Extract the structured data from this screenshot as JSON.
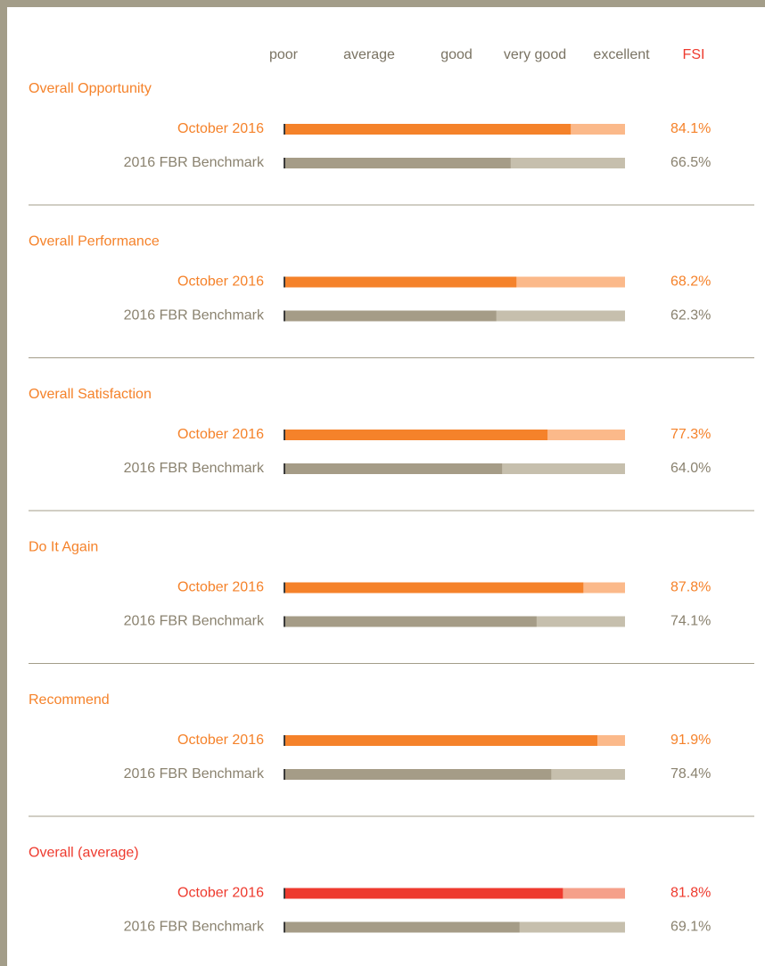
{
  "chart_data": {
    "type": "bar",
    "orientation": "horizontal",
    "scale_labels": [
      "poor",
      "average",
      "good",
      "very good",
      "excellent"
    ],
    "value_header": "FSI",
    "value_header_color": "#ee3a2e",
    "categories": [
      "Overall Opportunity",
      "Overall Performance",
      "Overall Satisfaction",
      "Do It Again",
      "Recommend",
      "Overall (average)"
    ],
    "xlim": [
      0,
      100
    ],
    "series": [
      {
        "name": "October 2016",
        "colors": [
          "#f5822a",
          "#f5822a",
          "#f5822a",
          "#f5822a",
          "#f5822a",
          "#ee3a2e"
        ],
        "track_colors": [
          "#fbb98a",
          "#fbb98a",
          "#fbb98a",
          "#fbb98a",
          "#fbb98a",
          "#f5a08a"
        ],
        "values": [
          84.1,
          68.2,
          77.3,
          87.8,
          91.9,
          81.8
        ],
        "value_labels": [
          "84.1%",
          "68.2%",
          "77.3%",
          "87.8%",
          "91.9%",
          "81.8%"
        ]
      },
      {
        "name": "2016 FBR Benchmark",
        "colors": [
          "#a59c87",
          "#a59c87",
          "#a59c87",
          "#a59c87",
          "#a59c87",
          "#a59c87"
        ],
        "track_colors": [
          "#c6bfad",
          "#c6bfad",
          "#c6bfad",
          "#c6bfad",
          "#c6bfad",
          "#c6bfad"
        ],
        "values": [
          66.5,
          62.3,
          64.0,
          74.1,
          78.4,
          69.1
        ],
        "value_labels": [
          "66.5%",
          "62.3%",
          "64.0%",
          "74.1%",
          "78.4%",
          "69.1%"
        ]
      }
    ]
  }
}
